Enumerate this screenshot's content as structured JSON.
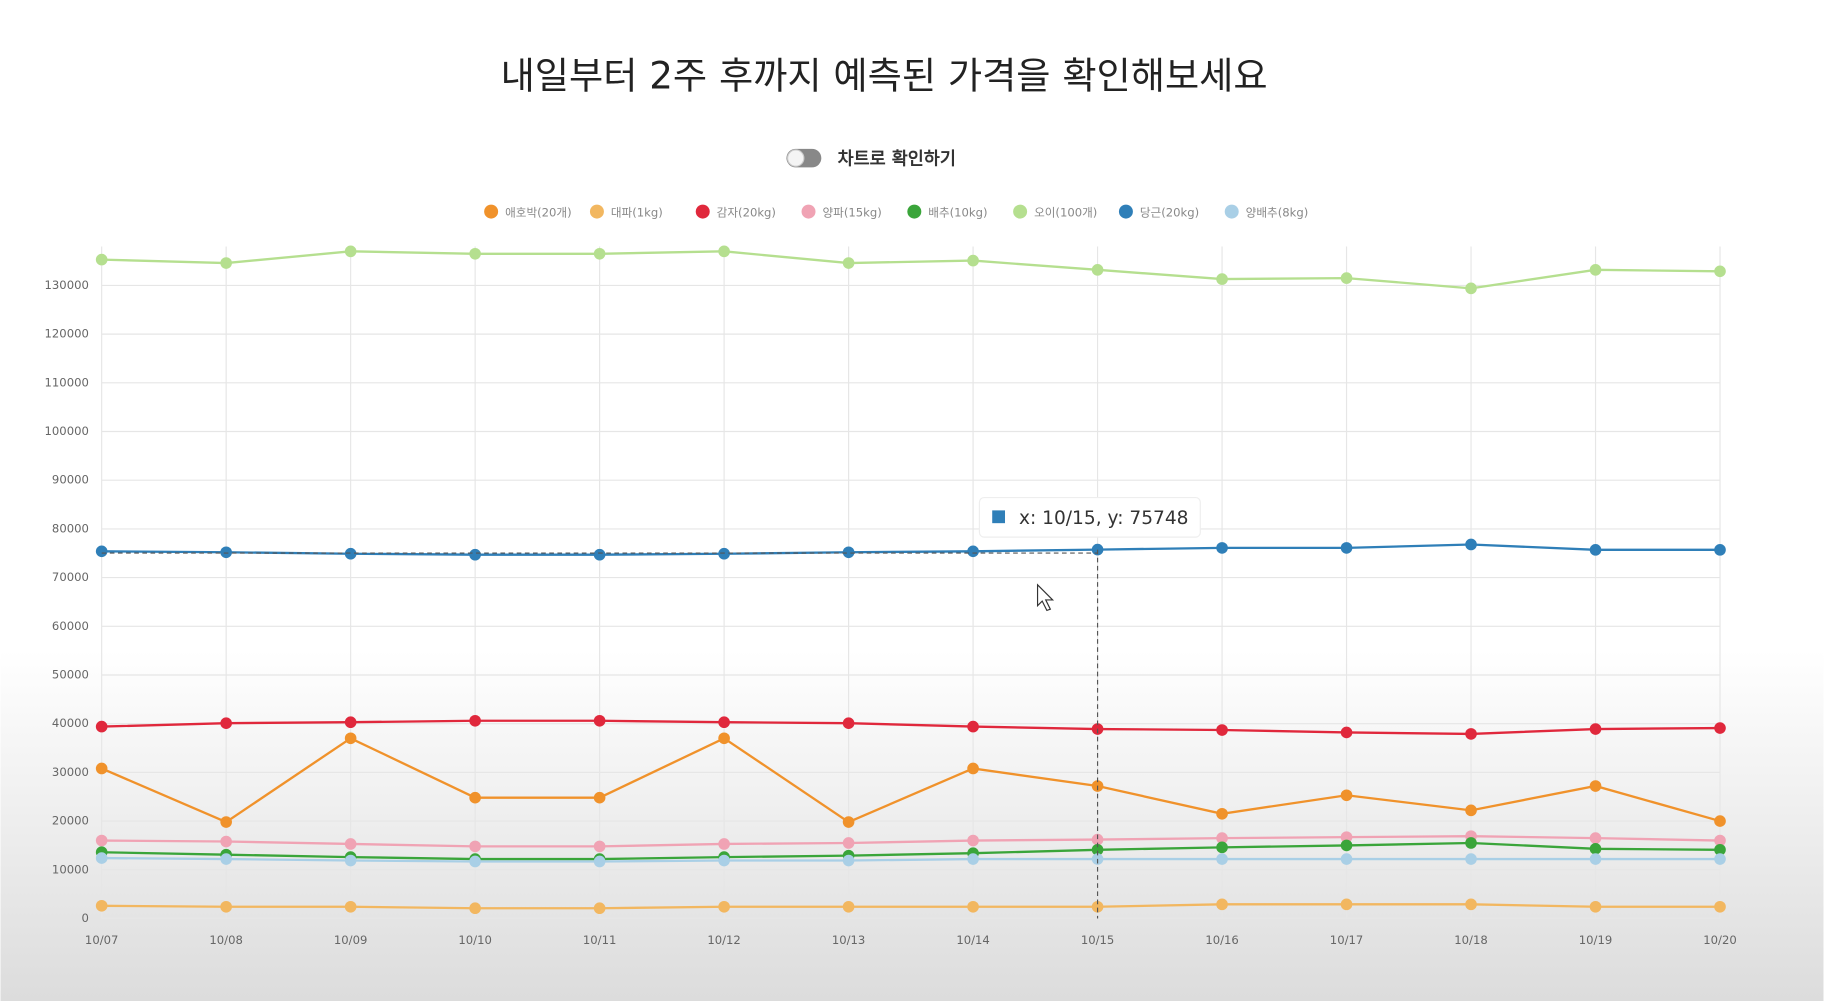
{
  "title": "내일부터 2주 후까지 예측된 가격을 확인해보세요",
  "toggle_label": "차트로 확인하기",
  "chart_data": {
    "type": "line",
    "categories": [
      "10/07",
      "10/08",
      "10/09",
      "10/10",
      "10/11",
      "10/12",
      "10/13",
      "10/14",
      "10/15",
      "10/16",
      "10/17",
      "10/18",
      "10/19",
      "10/20"
    ],
    "series": [
      {
        "name": "애호박(20개)",
        "color": "#f0922b",
        "values": [
          30800,
          19800,
          37000,
          24800,
          24800,
          37000,
          19800,
          30800,
          27200,
          21500,
          25300,
          22200,
          27200,
          20000
        ]
      },
      {
        "name": "대파(1kg)",
        "color": "#f2b760",
        "values": [
          2600,
          2400,
          2400,
          2100,
          2100,
          2400,
          2400,
          2400,
          2400,
          2900,
          2900,
          2900,
          2400,
          2400
        ]
      },
      {
        "name": "감자(20kg)",
        "color": "#e0283c",
        "values": [
          39400,
          40100,
          40300,
          40600,
          40600,
          40300,
          40100,
          39400,
          38900,
          38700,
          38200,
          37900,
          38900,
          39100
        ]
      },
      {
        "name": "양파(15kg)",
        "color": "#f0a3b4",
        "values": [
          16000,
          15800,
          15300,
          14800,
          14800,
          15300,
          15500,
          16000,
          16200,
          16500,
          16700,
          16900,
          16500,
          16000
        ]
      },
      {
        "name": "배추(10kg)",
        "color": "#3aa53a",
        "values": [
          13600,
          13100,
          12600,
          12200,
          12200,
          12600,
          12900,
          13400,
          14100,
          14600,
          15000,
          15500,
          14300,
          14100
        ]
      },
      {
        "name": "오이(100개)",
        "color": "#b5df8f",
        "values": [
          135300,
          134600,
          137000,
          136500,
          136500,
          137000,
          134600,
          135100,
          133200,
          131300,
          131500,
          129400,
          133200,
          132900
        ]
      },
      {
        "name": "당근(20kg)",
        "color": "#2f7fb8",
        "values": [
          75400,
          75200,
          74900,
          74700,
          74700,
          74900,
          75200,
          75400,
          75748,
          76100,
          76100,
          76800,
          75700,
          75700
        ]
      },
      {
        "name": "양배추(8kg)",
        "color": "#a9cfe6",
        "values": [
          12400,
          12200,
          11900,
          11700,
          11700,
          11900,
          11900,
          12200,
          12200,
          12200,
          12200,
          12200,
          12200,
          12200
        ]
      }
    ],
    "ylim": [
      0,
      138000
    ],
    "yticks": [
      0,
      10000,
      20000,
      30000,
      40000,
      50000,
      60000,
      70000,
      80000,
      90000,
      100000,
      110000,
      120000,
      130000
    ],
    "grid": true,
    "tooltip": "x: 10/15, y: 75748"
  }
}
